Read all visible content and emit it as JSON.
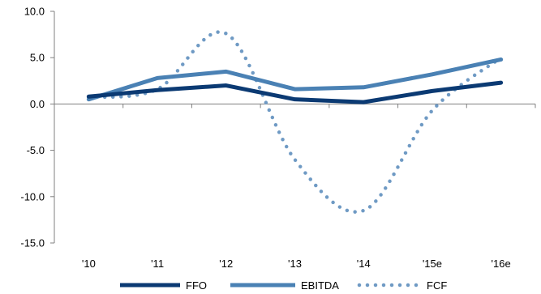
{
  "chart_data": {
    "type": "line",
    "categories": [
      "'10",
      "'11",
      "'12",
      "'13",
      "'14",
      "'15e",
      "'16e"
    ],
    "ylim": [
      -15,
      10
    ],
    "yticks": [
      10,
      5,
      0,
      -5,
      -10,
      -15
    ],
    "ytick_labels": [
      "10.0",
      "5.0",
      "0.0",
      "-5.0",
      "-10.0",
      "-15.0"
    ],
    "grid": false,
    "legend_position": "bottom",
    "series": [
      {
        "name": "FFO",
        "style": "solid",
        "color": "#0b3a73",
        "values": [
          0.8,
          1.5,
          2.0,
          0.5,
          0.2,
          1.4,
          2.3
        ],
        "smooth": false
      },
      {
        "name": "EBITDA",
        "style": "solid",
        "color": "#4a81b4",
        "values": [
          0.5,
          2.8,
          3.5,
          1.6,
          1.8,
          3.2,
          4.8
        ],
        "smooth": false
      },
      {
        "name": "FCF",
        "style": "dotted",
        "color": "#6f9ac4",
        "values": [
          0.7,
          1.6,
          7.6,
          -6.0,
          -11.5,
          -0.7,
          5.0
        ],
        "smooth": true
      }
    ]
  }
}
